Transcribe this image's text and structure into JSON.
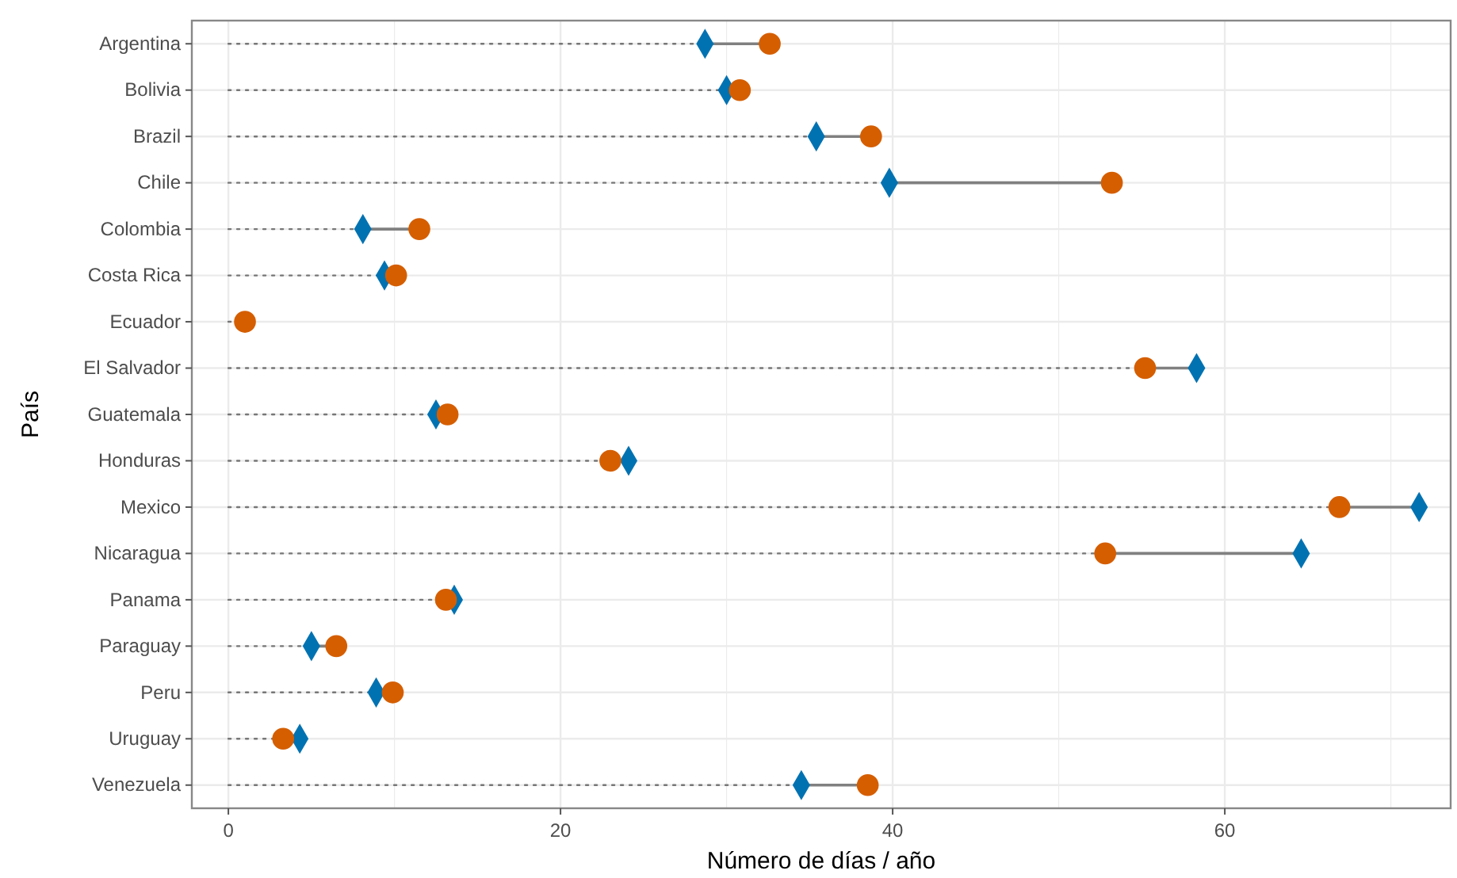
{
  "chart_data": {
    "type": "lollipop",
    "orientation": "horizontal",
    "xlabel": "Número de días / año",
    "ylabel": "País",
    "categories": [
      "Argentina",
      "Bolivia",
      "Brazil",
      "Chile",
      "Colombia",
      "Costa Rica",
      "Ecuador",
      "El Salvador",
      "Guatemala",
      "Honduras",
      "Mexico",
      "Nicaragua",
      "Panama",
      "Paraguay",
      "Peru",
      "Uruguay",
      "Venezuela"
    ],
    "series": [
      {
        "color": "#0072b2",
        "marker": "diamond",
        "values": [
          28.7,
          30.0,
          35.4,
          39.8,
          8.1,
          9.4,
          null,
          58.3,
          12.5,
          24.1,
          71.7,
          64.6,
          13.6,
          5.0,
          8.9,
          4.3,
          34.5
        ]
      },
      {
        "color": "#d55e00",
        "marker": "circle",
        "values": [
          32.6,
          30.8,
          38.7,
          53.2,
          11.5,
          10.1,
          1.0,
          55.2,
          13.2,
          23.0,
          66.9,
          52.8,
          13.1,
          6.5,
          9.9,
          3.3,
          38.5
        ]
      }
    ],
    "xlim": [
      -2.2,
      73.6
    ],
    "xticks": [
      0,
      {
        "value": 10,
        "label": null
      },
      20,
      {
        "value": 30,
        "label": null
      },
      40,
      {
        "value": 50,
        "label": null
      },
      60,
      {
        "value": 70,
        "label": null
      }
    ],
    "grid": true,
    "line_style": "dotted"
  }
}
